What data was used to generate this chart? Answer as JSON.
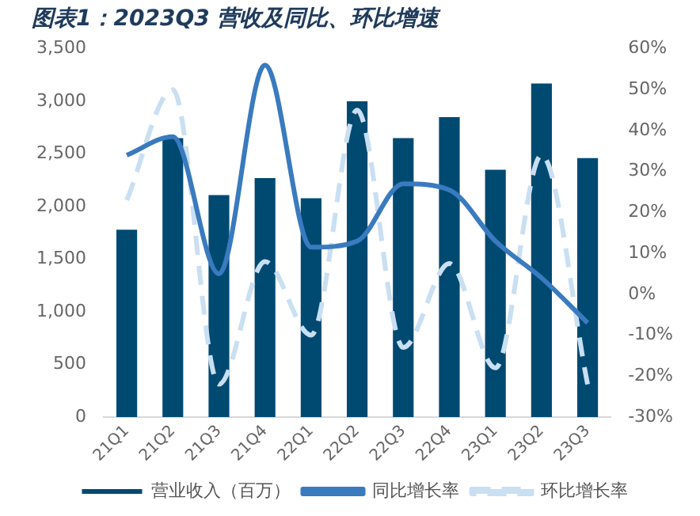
{
  "chart_data": {
    "type": "bar",
    "title": "图表1：2023Q3 营收及同比、环比增速",
    "categories": [
      "21Q1",
      "21Q2",
      "21Q3",
      "21Q4",
      "22Q1",
      "22Q2",
      "22Q3",
      "22Q4",
      "23Q1",
      "23Q2",
      "23Q3"
    ],
    "series": [
      {
        "name": "营业收入（百万）",
        "color": "#004a72",
        "values": [
          1780,
          2650,
          2110,
          2270,
          2080,
          3000,
          2650,
          2850,
          2350,
          3170,
          2460
        ]
      },
      {
        "name": "同比增长率",
        "type": "line",
        "axis": "y2",
        "color": "#3a7abf",
        "line_style": "solid",
        "values": [
          34,
          38.5,
          5,
          56,
          11.5,
          13,
          27,
          25.5,
          13,
          4,
          -7
        ]
      },
      {
        "name": "环比增长率",
        "type": "line",
        "axis": "y2",
        "color": "#c9dff2",
        "line_style": "dashed",
        "values": [
          23,
          50,
          -22,
          8,
          -10,
          45,
          -13,
          7.5,
          -18,
          34,
          -22
        ]
      }
    ],
    "ylim": [
      0,
      3500
    ],
    "yticks": [
      0,
      500,
      {
        "value": 1000,
        "label": "1,000"
      },
      {
        "value": 1500,
        "label": "1,500"
      },
      {
        "value": 2000,
        "label": "2,000"
      },
      {
        "value": 2500,
        "label": "2,500"
      },
      {
        "value": 3000,
        "label": "3,000"
      },
      {
        "value": 3500,
        "label": "3,500"
      }
    ],
    "y2lim": [
      -30,
      60
    ],
    "y2ticks": [
      {
        "value": -30,
        "label": "-30%"
      },
      {
        "value": -20,
        "label": "-20%"
      },
      {
        "value": -10,
        "label": "-10%"
      },
      {
        "value": 0,
        "label": "0%"
      },
      {
        "value": 10,
        "label": "10%"
      },
      {
        "value": 20,
        "label": "20%"
      },
      {
        "value": 30,
        "label": "30%"
      },
      {
        "value": 40,
        "label": "40%"
      },
      {
        "value": 50,
        "label": "50%"
      },
      {
        "value": 60,
        "label": "60%"
      }
    ],
    "grid": false,
    "legend": "bottom",
    "marker": "none"
  }
}
